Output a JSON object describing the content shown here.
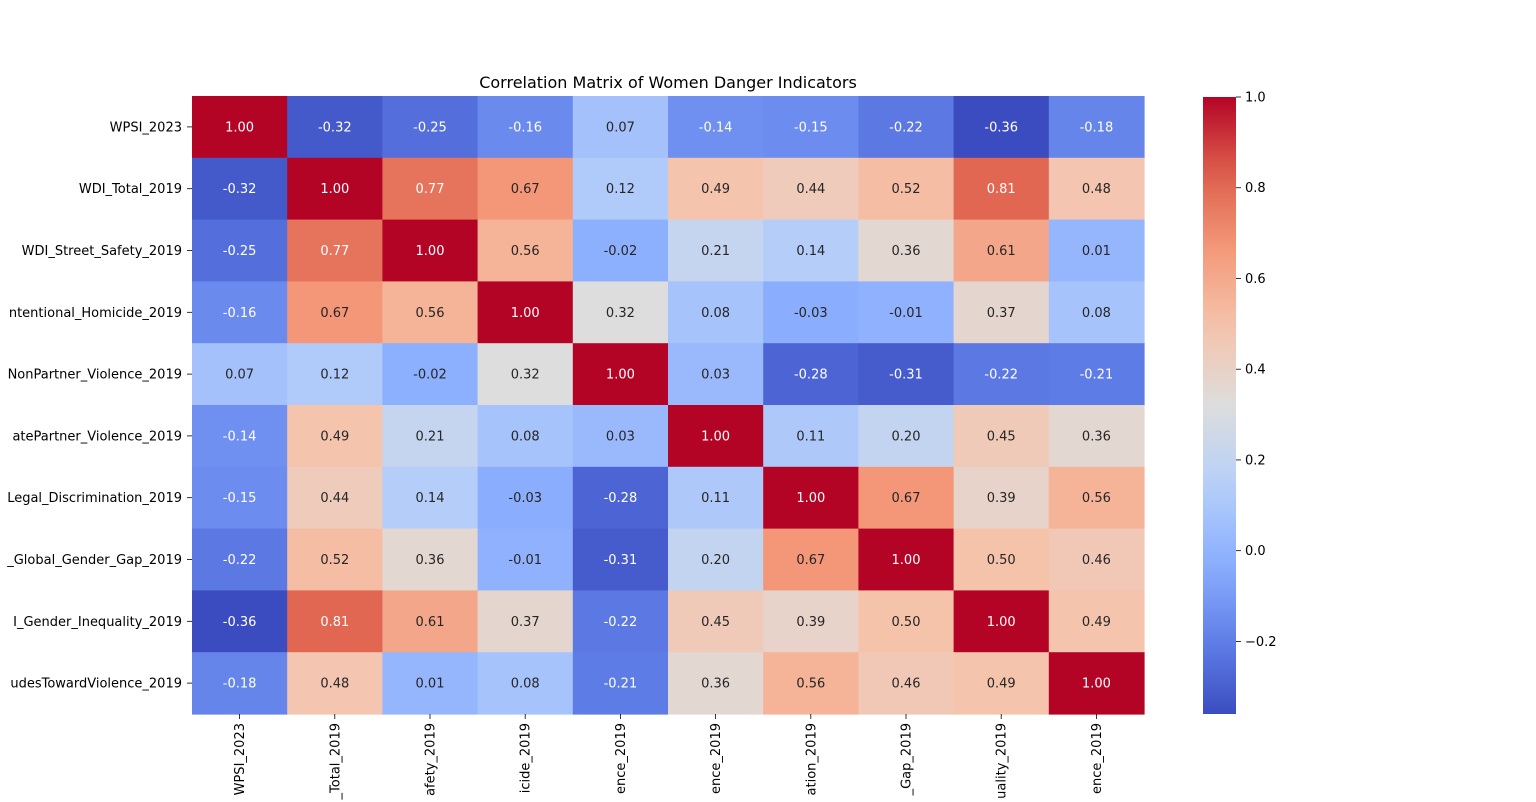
{
  "chart_data": {
    "type": "heatmap",
    "title": "Correlation Matrix of Women Danger Indicators",
    "colormap": "coolwarm",
    "row_labels": [
      "WPSI_2023",
      "WDI_Total_2019",
      "WDI_Street_Safety_2019",
      "ntentional_Homicide_2019",
      "NonPartner_Violence_2019",
      "atePartner_Violence_2019",
      "Legal_Discrimination_2019",
      "_Global_Gender_Gap_2019",
      "I_Gender_Inequality_2019",
      "udesTowardViolence_2019"
    ],
    "column_labels": [
      "WPSI_2023",
      "_Total_2019",
      "afety_2019",
      "icide_2019",
      "ence_2019",
      "ence_2019",
      "ation_2019",
      "_Gap_2019",
      "uality_2019",
      "ence_2019"
    ],
    "values": [
      [
        1.0,
        -0.32,
        -0.25,
        -0.16,
        0.07,
        -0.14,
        -0.15,
        -0.22,
        -0.36,
        -0.18
      ],
      [
        -0.32,
        1.0,
        0.77,
        0.67,
        0.12,
        0.49,
        0.44,
        0.52,
        0.81,
        0.48
      ],
      [
        -0.25,
        0.77,
        1.0,
        0.56,
        -0.02,
        0.21,
        0.14,
        0.36,
        0.61,
        0.01
      ],
      [
        -0.16,
        0.67,
        0.56,
        1.0,
        0.32,
        0.08,
        -0.03,
        -0.01,
        0.37,
        0.08
      ],
      [
        0.07,
        0.12,
        -0.02,
        0.32,
        1.0,
        0.03,
        -0.28,
        -0.31,
        -0.22,
        -0.21
      ],
      [
        -0.14,
        0.49,
        0.21,
        0.08,
        0.03,
        1.0,
        0.11,
        0.2,
        0.45,
        0.36
      ],
      [
        -0.15,
        0.44,
        0.14,
        -0.03,
        -0.28,
        0.11,
        1.0,
        0.67,
        0.39,
        0.56
      ],
      [
        -0.22,
        0.52,
        0.36,
        -0.01,
        -0.31,
        0.2,
        0.67,
        1.0,
        0.5,
        0.46
      ],
      [
        -0.36,
        0.81,
        0.61,
        0.37,
        -0.22,
        0.45,
        0.39,
        0.5,
        1.0,
        0.49
      ],
      [
        -0.18,
        0.48,
        0.01,
        0.08,
        -0.21,
        0.36,
        0.56,
        0.46,
        0.49,
        1.0
      ]
    ],
    "color_range": [
      -0.36,
      1.0
    ],
    "colorbar_ticks": [
      {
        "value": 1.0,
        "label": "1.0"
      },
      {
        "value": 0.8,
        "label": "0.8"
      },
      {
        "value": 0.6,
        "label": "0.6"
      },
      {
        "value": 0.4,
        "label": "0.4"
      },
      {
        "value": 0.2,
        "label": "0.2"
      },
      {
        "value": 0.0,
        "label": "0.0"
      },
      {
        "value": -0.2,
        "label": "−0.2"
      }
    ],
    "legend_placement": "right",
    "grid": false
  }
}
